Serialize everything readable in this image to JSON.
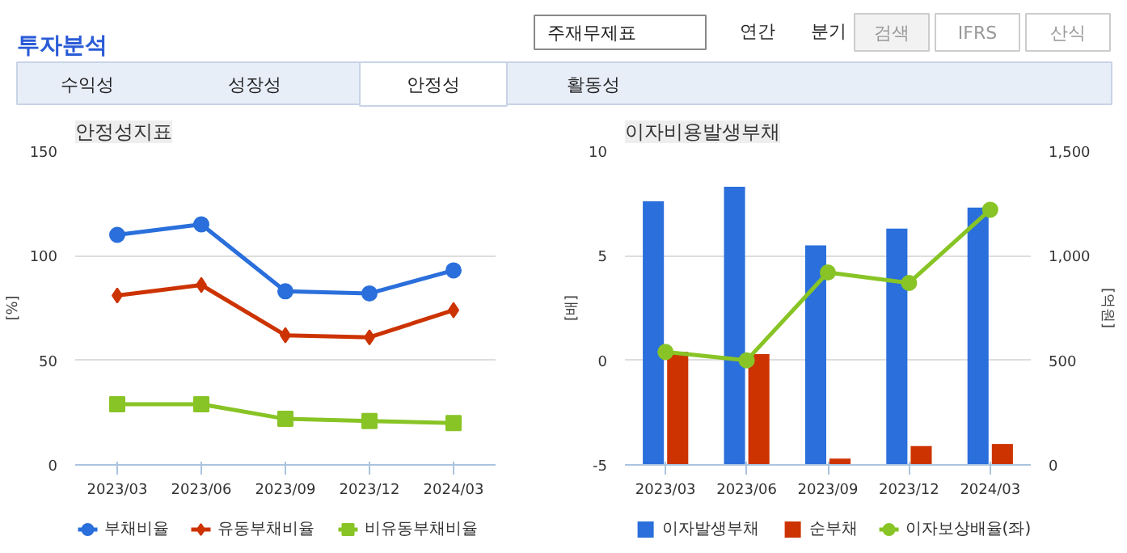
{
  "chart_data": [
    {
      "type": "other",
      "title": "투자분석",
      "annotations": [
        "주재무제표",
        "연간",
        "분기",
        "검색",
        "IFRS",
        "산식",
        "수익성",
        "성장성",
        "안정성",
        "활동성"
      ]
    },
    {
      "type": "line",
      "title": "안정성지표",
      "ylabel": "[%]",
      "categories": [
        "2023/03",
        "2023/06",
        "2023/09",
        "2023/12",
        "2024/03"
      ],
      "ylim": [
        0,
        150
      ],
      "yticks": [
        0,
        50,
        100,
        150
      ],
      "grid": "y",
      "legend": "bottom",
      "series": [
        {
          "name": "부채비율",
          "color": "#2a6fdb",
          "marker": "circle",
          "values": [
            110,
            115,
            83,
            82,
            93
          ]
        },
        {
          "name": "유동부채비율",
          "color": "#cc3300",
          "marker": "diamond",
          "values": [
            81,
            86,
            62,
            61,
            74
          ]
        },
        {
          "name": "비유동부채비율",
          "color": "#88c425",
          "marker": "square",
          "values": [
            29,
            29,
            22,
            21,
            20
          ]
        }
      ]
    },
    {
      "type": "bar",
      "title": "이자비용발생부채",
      "ylabel": "[배]",
      "y2label": "[억원]",
      "categories": [
        "2023/03",
        "2023/06",
        "2023/09",
        "2023/12",
        "2024/03"
      ],
      "ylim": [
        -5,
        10
      ],
      "yticks": [
        -5,
        0,
        5,
        10
      ],
      "y2lim": [
        0,
        1500
      ],
      "y2ticks": [
        {
          "value": 0,
          "label": "0"
        },
        {
          "value": 500,
          "label": "500"
        },
        {
          "value": 1000,
          "label": "1,000"
        },
        {
          "value": 1500,
          "label": "1,500"
        }
      ],
      "grid": "y",
      "legend": "bottom",
      "series": [
        {
          "name": "이자발생부채",
          "color": "#2a6fdb",
          "axis": "y2",
          "values": [
            1260,
            1330,
            1050,
            1130,
            1230
          ]
        },
        {
          "name": "순부채",
          "color": "#cc3300",
          "axis": "y2",
          "values": [
            540,
            530,
            30,
            90,
            100
          ]
        },
        {
          "name": "이자보상배율(좌)",
          "type": "line",
          "color": "#88c425",
          "marker": "circle",
          "values": [
            0.4,
            0,
            4.2,
            3.7,
            7.2
          ]
        }
      ]
    }
  ]
}
